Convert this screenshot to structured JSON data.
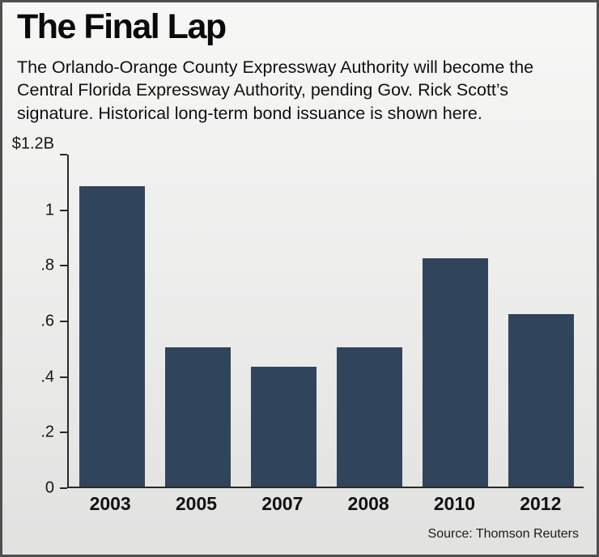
{
  "chart_data": {
    "type": "bar",
    "title": "The Final Lap",
    "subtitle": "The Orlando-Orange County Expressway Authority will become the Central Florida Expressway Authority, pending Gov. Rick Scott’s signature. Historical long-term bond issuance is shown here.",
    "categories": [
      "2003",
      "2005",
      "2007",
      "2008",
      "2010",
      "2012"
    ],
    "values": [
      1.08,
      0.5,
      0.43,
      0.5,
      0.82,
      0.62
    ],
    "ylim": [
      0,
      1.2
    ],
    "yticks": [
      {
        "value": 1.2,
        "label": "$1.2B"
      },
      {
        "value": 1.0,
        "label": "1"
      },
      {
        "value": 0.8,
        "label": ".8"
      },
      {
        "value": 0.6,
        "label": ".6"
      },
      {
        "value": 0.4,
        "label": ".4"
      },
      {
        "value": 0.2,
        "label": ".2"
      },
      {
        "value": 0.0,
        "label": "0"
      }
    ],
    "grid": false,
    "legend": null,
    "bar_color": "#30455c",
    "source": "Source: Thomson Reuters"
  }
}
